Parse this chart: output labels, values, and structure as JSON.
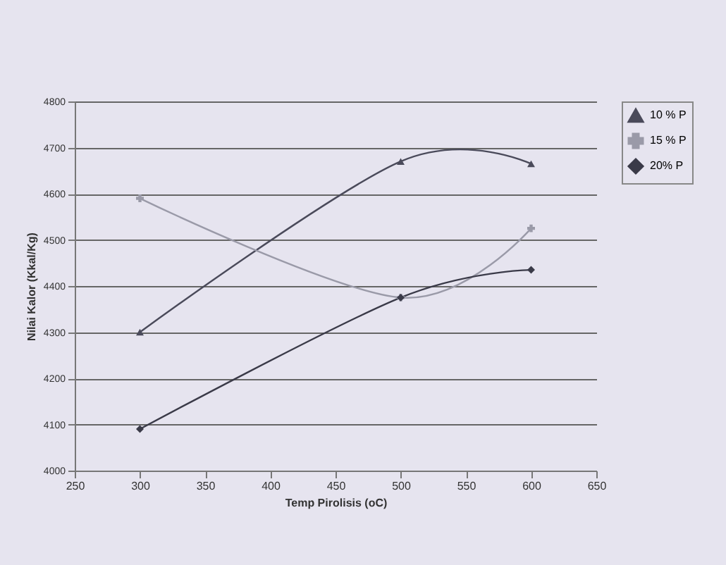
{
  "chart_data": {
    "type": "line",
    "xlabel": "Temp Pirolisis (oC)",
    "ylabel": "Nilai Kalor (Kkal/Kg)",
    "x": [
      300,
      500,
      600
    ],
    "series": [
      {
        "name": "10 % P",
        "color": "#4a4a5a",
        "marker": "triangle",
        "values": [
          4300,
          4670,
          4665
        ]
      },
      {
        "name": "15 % P",
        "color": "#9a9aa8",
        "marker": "cross",
        "values": [
          4590,
          4375,
          4525
        ]
      },
      {
        "name": "20% P",
        "color": "#3a3a48",
        "marker": "diamond",
        "values": [
          4090,
          4375,
          4435
        ]
      }
    ],
    "xlim": [
      250,
      650
    ],
    "xticks": [
      250,
      300,
      350,
      400,
      450,
      500,
      550,
      600,
      650
    ],
    "ylim": [
      4000,
      4800
    ],
    "yticks": [
      4000,
      4100,
      4200,
      4300,
      4400,
      4500,
      4600,
      4700,
      4800
    ],
    "grid": "y",
    "legend": "right",
    "line_style": "solid"
  }
}
